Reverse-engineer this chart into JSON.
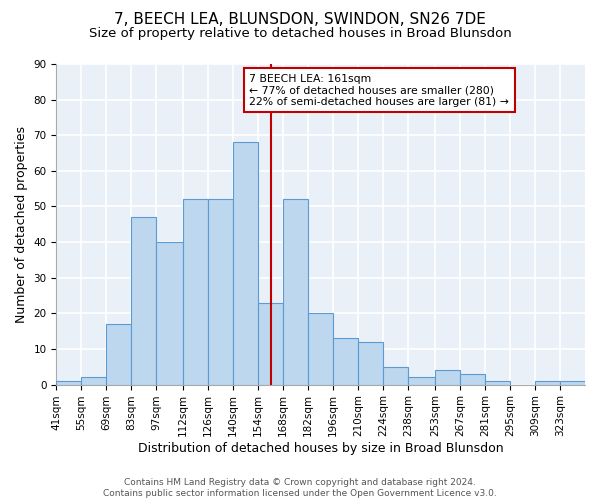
{
  "title": "7, BEECH LEA, BLUNSDON, SWINDON, SN26 7DE",
  "subtitle": "Size of property relative to detached houses in Broad Blunsdon",
  "xlabel": "Distribution of detached houses by size in Broad Blunsdon",
  "ylabel": "Number of detached properties",
  "bin_labels": [
    "41sqm",
    "55sqm",
    "69sqm",
    "83sqm",
    "97sqm",
    "112sqm",
    "126sqm",
    "140sqm",
    "154sqm",
    "168sqm",
    "182sqm",
    "196sqm",
    "210sqm",
    "224sqm",
    "238sqm",
    "253sqm",
    "267sqm",
    "281sqm",
    "295sqm",
    "309sqm",
    "323sqm"
  ],
  "bar_heights": [
    1,
    2,
    17,
    47,
    40,
    52,
    52,
    68,
    23,
    52,
    20,
    13,
    12,
    5,
    2,
    4,
    3,
    1,
    0,
    1,
    1
  ],
  "bin_edges": [
    41,
    55,
    69,
    83,
    97,
    112,
    126,
    140,
    154,
    168,
    182,
    196,
    210,
    224,
    238,
    253,
    267,
    281,
    295,
    309,
    323,
    337
  ],
  "bar_color": "#bdd7ee",
  "bar_edge_color": "#5b9bd5",
  "property_size": 161,
  "vline_color": "#c00000",
  "annotation_line1": "7 BEECH LEA: 161sqm",
  "annotation_line2": "← 77% of detached houses are smaller (280)",
  "annotation_line3": "22% of semi-detached houses are larger (81) →",
  "annotation_box_color": "#ffffff",
  "annotation_box_edge_color": "#c00000",
  "ylim": [
    0,
    90
  ],
  "yticks": [
    0,
    10,
    20,
    30,
    40,
    50,
    60,
    70,
    80,
    90
  ],
  "bg_color": "#eaf0f8",
  "grid_color": "#ffffff",
  "title_fontsize": 11,
  "subtitle_fontsize": 9.5,
  "xlabel_fontsize": 9,
  "ylabel_fontsize": 9,
  "tick_fontsize": 7.5,
  "footer_text": "Contains HM Land Registry data © Crown copyright and database right 2024.\nContains public sector information licensed under the Open Government Licence v3.0.",
  "footer_fontsize": 6.5
}
